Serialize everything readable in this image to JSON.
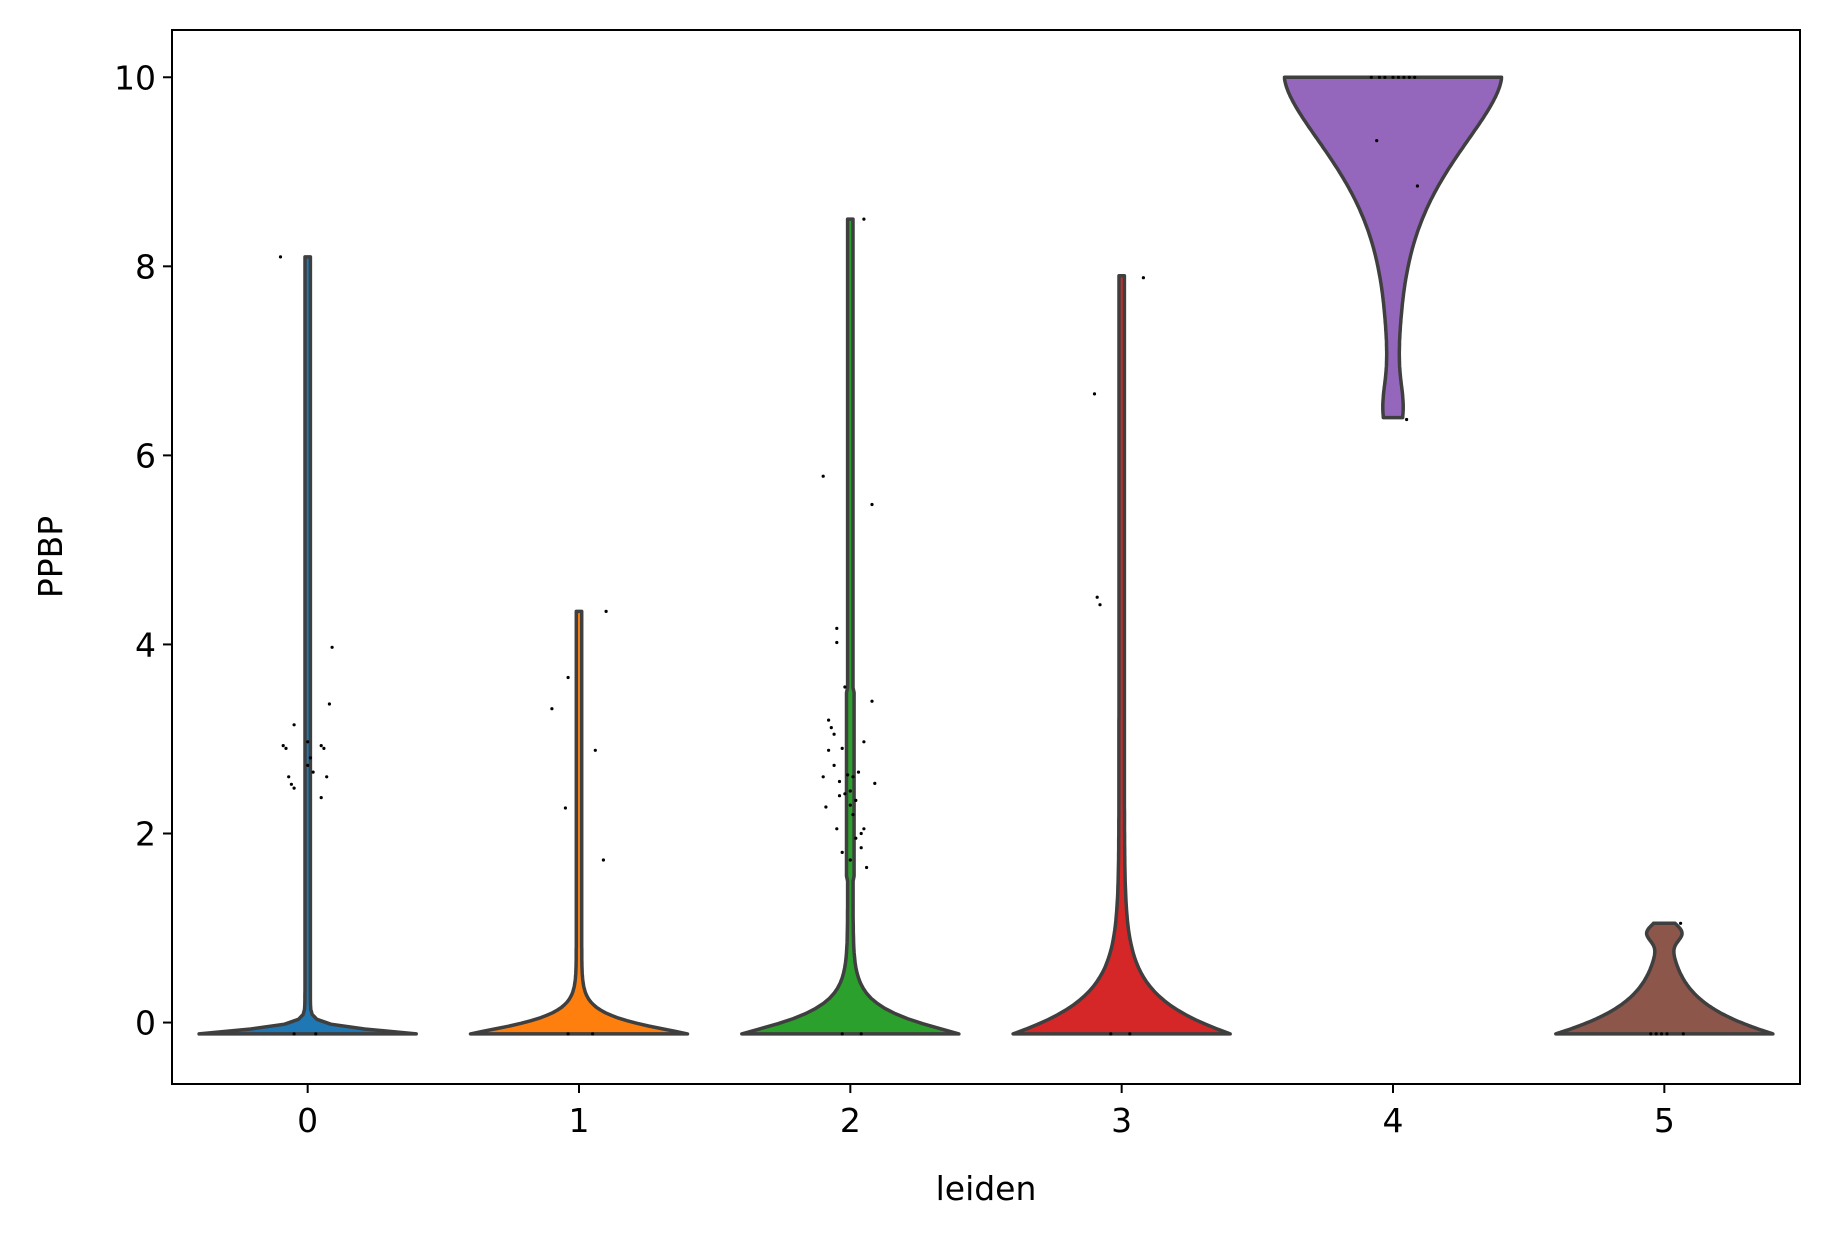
{
  "chart_data": {
    "type": "violin",
    "xlabel": "leiden",
    "ylabel": "PPBP",
    "ylim": [
      -0.65,
      10.5
    ],
    "xlim": [
      -0.5,
      5.5
    ],
    "yticks": [
      0,
      2,
      4,
      6,
      8,
      10
    ],
    "yticklabels": [
      "0",
      "2",
      "4",
      "6",
      "8",
      "10"
    ],
    "categories": [
      "0",
      "1",
      "2",
      "3",
      "4",
      "5"
    ],
    "colors": [
      "#1f77b4",
      "#ff7f0e",
      "#2ca02c",
      "#d62728",
      "#9467bd",
      "#8c564b"
    ],
    "violin_min": [
      -0.12,
      -0.12,
      -0.12,
      -0.12,
      6.4,
      -0.12
    ],
    "violin_max": [
      8.1,
      4.35,
      8.5,
      7.9,
      10.0,
      1.05
    ],
    "points": [
      [
        [
          -0.1,
          8.1
        ],
        [
          -0.09,
          2.93
        ],
        [
          -0.08,
          2.9
        ],
        [
          -0.07,
          2.6
        ],
        [
          -0.06,
          2.52
        ],
        [
          -0.05,
          2.48
        ],
        [
          -0.05,
          3.15
        ],
        [
          0.0,
          2.97
        ],
        [
          0.0,
          2.72
        ],
        [
          0.01,
          2.8
        ],
        [
          0.02,
          2.65
        ],
        [
          0.05,
          2.38
        ],
        [
          0.05,
          2.93
        ],
        [
          0.06,
          2.9
        ],
        [
          0.07,
          2.6
        ],
        [
          0.08,
          3.37
        ],
        [
          0.09,
          3.97
        ],
        [
          -0.05,
          -0.12
        ],
        [
          0.03,
          -0.12
        ]
      ],
      [
        [
          -0.1,
          3.32
        ],
        [
          -0.05,
          2.27
        ],
        [
          -0.04,
          3.65
        ],
        [
          0.06,
          2.88
        ],
        [
          0.09,
          1.72
        ],
        [
          0.1,
          4.35
        ],
        [
          -0.04,
          -0.12
        ],
        [
          0.05,
          -0.12
        ]
      ],
      [
        [
          -0.1,
          5.78
        ],
        [
          -0.1,
          2.6
        ],
        [
          -0.09,
          2.28
        ],
        [
          -0.08,
          2.88
        ],
        [
          -0.08,
          3.2
        ],
        [
          -0.07,
          3.12
        ],
        [
          -0.06,
          2.72
        ],
        [
          -0.06,
          3.05
        ],
        [
          -0.05,
          4.02
        ],
        [
          -0.05,
          4.17
        ],
        [
          -0.05,
          2.05
        ],
        [
          -0.04,
          2.55
        ],
        [
          -0.04,
          2.4
        ],
        [
          -0.03,
          1.8
        ],
        [
          -0.03,
          2.9
        ],
        [
          -0.02,
          3.55
        ],
        [
          -0.02,
          2.42
        ],
        [
          -0.01,
          2.62
        ],
        [
          0.0,
          2.3
        ],
        [
          0.0,
          1.72
        ],
        [
          0.0,
          2.45
        ],
        [
          0.01,
          2.2
        ],
        [
          0.01,
          2.6
        ],
        [
          0.02,
          1.95
        ],
        [
          0.02,
          2.35
        ],
        [
          0.03,
          2.65
        ],
        [
          0.04,
          2.0
        ],
        [
          0.04,
          1.85
        ],
        [
          0.05,
          2.05
        ],
        [
          0.05,
          2.97
        ],
        [
          0.06,
          1.64
        ],
        [
          0.08,
          3.4
        ],
        [
          0.08,
          5.48
        ],
        [
          0.09,
          2.53
        ],
        [
          0.05,
          8.5
        ],
        [
          -0.03,
          -0.12
        ],
        [
          0.04,
          -0.12
        ]
      ],
      [
        [
          -0.1,
          6.65
        ],
        [
          -0.09,
          4.5
        ],
        [
          -0.08,
          4.42
        ],
        [
          0.08,
          7.88
        ],
        [
          -0.04,
          -0.12
        ],
        [
          0.03,
          -0.12
        ]
      ],
      [
        [
          -0.08,
          10.0
        ],
        [
          -0.05,
          10.0
        ],
        [
          -0.03,
          10.0
        ],
        [
          0.0,
          10.0
        ],
        [
          0.02,
          10.0
        ],
        [
          0.04,
          10.0
        ],
        [
          0.06,
          10.0
        ],
        [
          0.08,
          10.0
        ],
        [
          -0.06,
          9.33
        ],
        [
          0.09,
          8.85
        ],
        [
          0.05,
          6.38
        ]
      ],
      [
        [
          -0.05,
          -0.12
        ],
        [
          -0.03,
          -0.12
        ],
        [
          -0.01,
          -0.12
        ],
        [
          0.01,
          -0.12
        ],
        [
          0.07,
          -0.12
        ],
        [
          0.06,
          1.05
        ]
      ]
    ]
  }
}
